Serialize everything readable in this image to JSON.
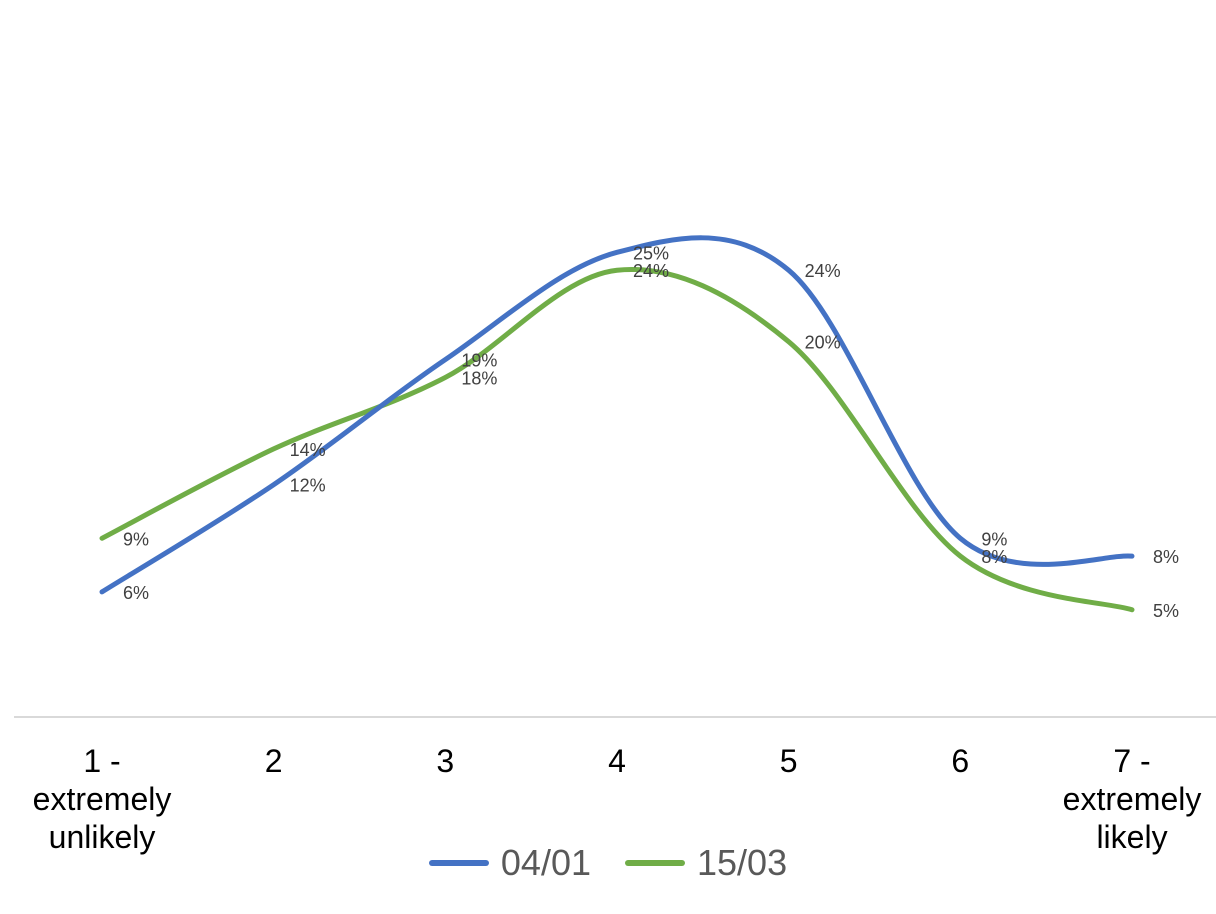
{
  "chart_data": {
    "type": "line",
    "categories": [
      "1 - extremely unlikely",
      "2",
      "3",
      "4",
      "5",
      "6",
      "7 - extremely likely"
    ],
    "category_lines": [
      [
        "1 -",
        "extremely",
        "unlikely"
      ],
      [
        "2"
      ],
      [
        "3"
      ],
      [
        "4"
      ],
      [
        "5"
      ],
      [
        "6"
      ],
      [
        "7 -",
        "extremely",
        "likely"
      ]
    ],
    "series": [
      {
        "name": "04/01",
        "color": "#4472C4",
        "values": [
          6,
          12,
          19,
          25,
          24,
          9,
          8
        ],
        "labels": [
          "6%",
          "12%",
          "19%",
          "25%",
          "24%",
          "9%",
          "8%"
        ]
      },
      {
        "name": "15/03",
        "color": "#70AD47",
        "values": [
          9,
          14,
          18,
          24,
          20,
          8,
          5
        ],
        "labels": [
          "9%",
          "14%",
          "18%",
          "24%",
          "20%",
          "8%",
          "5%"
        ]
      }
    ],
    "ylim": [
      -1,
      38
    ],
    "smooth": true,
    "grid": false,
    "legend_position": "bottom",
    "axis_color": "#D9D9D9",
    "label_color": "#404040"
  }
}
